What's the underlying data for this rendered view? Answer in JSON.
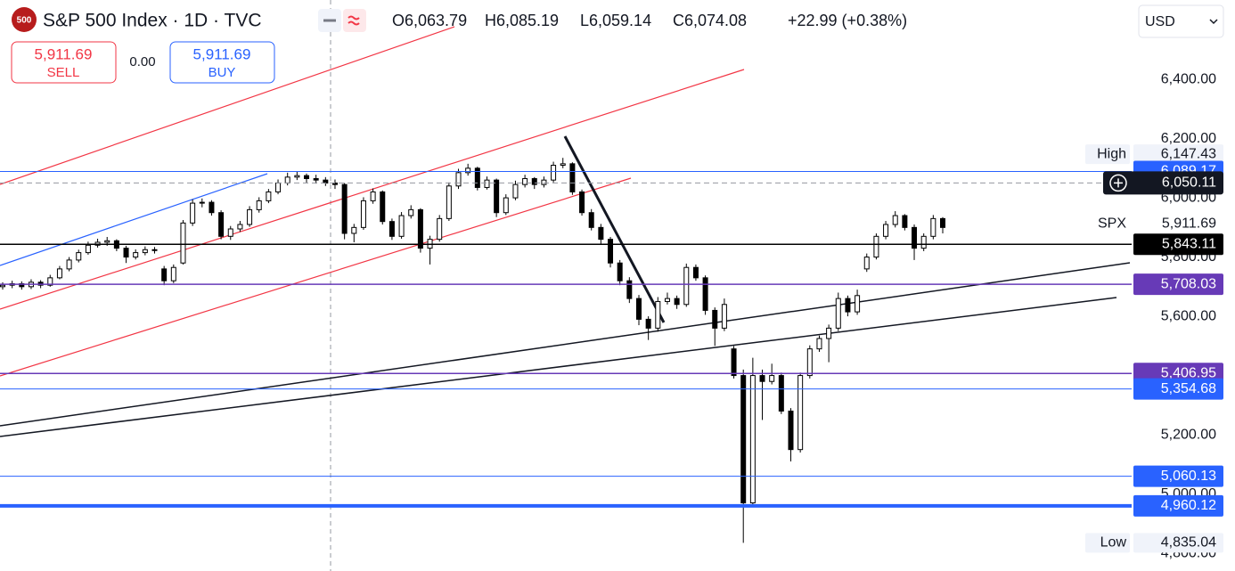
{
  "header": {
    "logo": "500",
    "title": "S&P 500 Index · 1D · TVC",
    "legend": [
      {
        "label": "O",
        "value": "6,063.79"
      },
      {
        "label": "H",
        "value": "6,085.19"
      },
      {
        "label": "L",
        "value": "6,059.14"
      },
      {
        "label": "C",
        "value": "6,074.08"
      }
    ],
    "change": "+22.99 (+0.38%)",
    "sell": {
      "price": "5,911.69",
      "label": "SELL"
    },
    "spread": "0.00",
    "buy": {
      "price": "5,911.69",
      "label": "BUY"
    },
    "currency": "USD"
  },
  "chart_data": {
    "type": "candlestick",
    "up_color": "#ffffff",
    "down_color": "#000000",
    "ylim": [
      4740,
      6668
    ],
    "yticks": [
      {
        "value": 4800,
        "label": "4,800.00"
      },
      {
        "value": 5000,
        "label": "5,000.00"
      },
      {
        "value": 5200,
        "label": "5,200.00"
      },
      {
        "value": 5600,
        "label": "5,600.00"
      },
      {
        "value": 5800,
        "label": "5,800.00"
      },
      {
        "value": 6000,
        "label": "6,000.00"
      },
      {
        "value": 6200,
        "label": "6,200.00"
      },
      {
        "value": 6400,
        "label": "6,400.00"
      }
    ],
    "ohlc": [
      [
        5700,
        5715,
        5690,
        5705
      ],
      [
        5705,
        5720,
        5695,
        5710
      ],
      [
        5710,
        5718,
        5690,
        5700
      ],
      [
        5700,
        5725,
        5692,
        5715
      ],
      [
        5715,
        5722,
        5695,
        5705
      ],
      [
        5705,
        5740,
        5700,
        5730
      ],
      [
        5730,
        5770,
        5725,
        5760
      ],
      [
        5760,
        5800,
        5752,
        5790
      ],
      [
        5790,
        5825,
        5782,
        5815
      ],
      [
        5815,
        5852,
        5808,
        5840
      ],
      [
        5840,
        5862,
        5832,
        5850
      ],
      [
        5850,
        5868,
        5838,
        5855
      ],
      [
        5855,
        5860,
        5820,
        5830
      ],
      [
        5830,
        5838,
        5780,
        5800
      ],
      [
        5800,
        5826,
        5792,
        5815
      ],
      [
        5815,
        5836,
        5806,
        5825
      ],
      [
        5825,
        5834,
        5812,
        5825
      ],
      [
        5760,
        5770,
        5705,
        5720
      ],
      [
        5720,
        5775,
        5712,
        5765
      ],
      [
        5780,
        5925,
        5775,
        5915
      ],
      [
        5915,
        5995,
        5905,
        5982
      ],
      [
        5982,
        5998,
        5968,
        5985
      ],
      [
        5985,
        5992,
        5940,
        5950
      ],
      [
        5950,
        5958,
        5860,
        5870
      ],
      [
        5870,
        5905,
        5858,
        5895
      ],
      [
        5895,
        5922,
        5885,
        5910
      ],
      [
        5910,
        5972,
        5902,
        5960
      ],
      [
        5960,
        6002,
        5950,
        5990
      ],
      [
        5990,
        6030,
        5982,
        6020
      ],
      [
        6020,
        6062,
        6012,
        6050
      ],
      [
        6050,
        6085,
        6042,
        6070
      ],
      [
        6070,
        6090,
        6060,
        6075
      ],
      [
        6075,
        6082,
        6050,
        6065
      ],
      [
        6065,
        6078,
        6048,
        6060
      ],
      [
        6060,
        6070,
        6040,
        6050
      ],
      [
        6050,
        6062,
        6030,
        6045
      ],
      [
        6045,
        6050,
        5860,
        5880
      ],
      [
        5880,
        5912,
        5850,
        5900
      ],
      [
        5900,
        6002,
        5892,
        5990
      ],
      [
        5990,
        6032,
        5980,
        6020
      ],
      [
        6020,
        6025,
        5910,
        5920
      ],
      [
        5920,
        5930,
        5858,
        5870
      ],
      [
        5870,
        5952,
        5862,
        5940
      ],
      [
        5940,
        5975,
        5930,
        5960
      ],
      [
        5960,
        5965,
        5815,
        5830
      ],
      [
        5830,
        5872,
        5775,
        5860
      ],
      [
        5860,
        5942,
        5852,
        5930
      ],
      [
        5930,
        6052,
        5922,
        6040
      ],
      [
        6040,
        6098,
        6030,
        6085
      ],
      [
        6085,
        6115,
        6075,
        6100
      ],
      [
        6100,
        6105,
        6025,
        6035
      ],
      [
        6035,
        6072,
        6028,
        6060
      ],
      [
        6060,
        6065,
        5935,
        5950
      ],
      [
        5950,
        6012,
        5942,
        6000
      ],
      [
        6000,
        6058,
        5992,
        6045
      ],
      [
        6045,
        6078,
        6035,
        6065
      ],
      [
        6065,
        6070,
        6030,
        6045
      ],
      [
        6045,
        6072,
        6035,
        6060
      ],
      [
        6060,
        6122,
        6052,
        6110
      ],
      [
        6110,
        6135,
        6100,
        6115
      ],
      [
        6115,
        6120,
        6010,
        6020
      ],
      [
        6020,
        6028,
        5940,
        5950
      ],
      [
        5950,
        5962,
        5890,
        5900
      ],
      [
        5900,
        5912,
        5845,
        5860
      ],
      [
        5860,
        5868,
        5765,
        5780
      ],
      [
        5780,
        5790,
        5705,
        5720
      ],
      [
        5720,
        5732,
        5645,
        5660
      ],
      [
        5660,
        5672,
        5570,
        5590
      ],
      [
        5590,
        5600,
        5520,
        5560
      ],
      [
        5560,
        5665,
        5548,
        5650
      ],
      [
        5650,
        5680,
        5640,
        5660
      ],
      [
        5660,
        5670,
        5625,
        5640
      ],
      [
        5640,
        5778,
        5632,
        5765
      ],
      [
        5765,
        5775,
        5720,
        5730
      ],
      [
        5730,
        5738,
        5605,
        5620
      ],
      [
        5620,
        5630,
        5500,
        5560
      ],
      [
        5560,
        5660,
        5550,
        5640
      ],
      [
        5490,
        5500,
        5390,
        5400
      ],
      [
        5400,
        5420,
        4835,
        4970
      ],
      [
        4970,
        5460,
        4960,
        5400
      ],
      [
        5400,
        5420,
        5250,
        5380
      ],
      [
        5380,
        5440,
        5370,
        5400
      ],
      [
        5400,
        5410,
        5270,
        5280
      ],
      [
        5280,
        5290,
        5110,
        5150
      ],
      [
        5150,
        5410,
        5140,
        5400
      ],
      [
        5400,
        5502,
        5390,
        5490
      ],
      [
        5490,
        5535,
        5480,
        5525
      ],
      [
        5525,
        5572,
        5445,
        5560
      ],
      [
        5560,
        5680,
        5550,
        5660
      ],
      [
        5660,
        5670,
        5600,
        5615
      ],
      [
        5615,
        5690,
        5605,
        5670
      ],
      [
        5760,
        5812,
        5750,
        5800
      ],
      [
        5800,
        5880,
        5792,
        5870
      ],
      [
        5870,
        5922,
        5860,
        5910
      ],
      [
        5910,
        5955,
        5900,
        5940
      ],
      [
        5940,
        5945,
        5890,
        5900
      ],
      [
        5900,
        5910,
        5790,
        5830
      ],
      [
        5830,
        5880,
        5820,
        5870
      ],
      [
        5870,
        5942,
        5860,
        5930
      ],
      [
        5930,
        5935,
        5880,
        5900
      ]
    ],
    "levels": [
      {
        "value": 6089.17,
        "label": "6,089.17",
        "color": "#2962ff",
        "style": "solid",
        "width": 1
      },
      {
        "value": 5843.11,
        "label": "5,843.11",
        "color": "#000000",
        "style": "solid",
        "width": 1.5
      },
      {
        "value": 5708.03,
        "label": "5,708.03",
        "color": "#673ab7",
        "style": "solid",
        "width": 1.5
      },
      {
        "value": 5406.95,
        "label": "5,406.95",
        "color": "#673ab7",
        "style": "solid",
        "width": 1.5
      },
      {
        "value": 5354.68,
        "label": "5,354.68",
        "color": "#2962ff",
        "style": "solid",
        "width": 1
      },
      {
        "value": 5060.13,
        "label": "5,060.13",
        "color": "#2962ff",
        "style": "solid",
        "width": 1
      },
      {
        "value": 4960.12,
        "label": "4,960.12",
        "color": "#2962ff",
        "style": "solid",
        "width": 4
      },
      {
        "value": 6050.11,
        "label": "6,050.11",
        "color": "#131722",
        "style": "dashed",
        "width": 1
      }
    ],
    "markers": [
      {
        "name": "High",
        "value": 6147.43,
        "label": "6,147.43",
        "boxed": true
      },
      {
        "name": "SPX",
        "value": 5911.69,
        "label": "5,911.69",
        "boxed": false
      },
      {
        "name": "Low",
        "value": 4835.04,
        "label": "4,835.04",
        "boxed": true
      }
    ]
  }
}
